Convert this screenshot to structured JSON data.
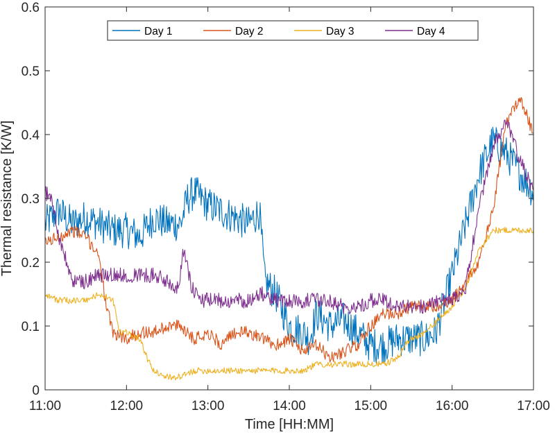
{
  "chart_data": {
    "type": "line",
    "xlabel": "Time [HH:MM]",
    "ylabel": "Thermal resistance [K/W]",
    "xlim": [
      "11:00",
      "17:00"
    ],
    "ylim": [
      0,
      0.6
    ],
    "x_ticks": [
      "11:00",
      "12:00",
      "13:00",
      "14:00",
      "15:00",
      "16:00",
      "17:00"
    ],
    "y_ticks": [
      "0",
      "0.1",
      "0.2",
      "0.3",
      "0.4",
      "0.5",
      "0.6"
    ],
    "grid": false,
    "legend_position": "top-center",
    "legend_orientation": "horizontal",
    "series": [
      {
        "name": "Day 1",
        "color": "#0072bd",
        "noise": 0.028,
        "x": [
          "11:00",
          "11:10",
          "11:20",
          "11:30",
          "11:40",
          "11:50",
          "12:00",
          "12:10",
          "12:20",
          "12:30",
          "12:40",
          "12:45",
          "12:50",
          "13:00",
          "13:10",
          "13:20",
          "13:30",
          "13:38",
          "13:42",
          "13:50",
          "14:00",
          "14:10",
          "14:15",
          "14:20",
          "14:30",
          "14:40",
          "14:50",
          "15:00",
          "15:10",
          "15:20",
          "15:30",
          "15:40",
          "15:48",
          "15:52",
          "16:00",
          "16:10",
          "16:20",
          "16:30",
          "16:40",
          "16:50",
          "17:00"
        ],
        "y": [
          0.26,
          0.28,
          0.26,
          0.27,
          0.26,
          0.25,
          0.25,
          0.24,
          0.27,
          0.26,
          0.26,
          0.3,
          0.31,
          0.29,
          0.28,
          0.27,
          0.26,
          0.28,
          0.17,
          0.15,
          0.1,
          0.09,
          0.08,
          0.12,
          0.1,
          0.11,
          0.09,
          0.07,
          0.07,
          0.08,
          0.08,
          0.08,
          0.09,
          0.12,
          0.18,
          0.26,
          0.34,
          0.39,
          0.37,
          0.34,
          0.31
        ]
      },
      {
        "name": "Day 2",
        "color": "#d95319",
        "noise": 0.01,
        "x": [
          "11:00",
          "11:10",
          "11:20",
          "11:30",
          "11:40",
          "11:45",
          "11:50",
          "12:00",
          "12:10",
          "12:20",
          "12:30",
          "12:40",
          "12:50",
          "13:00",
          "13:10",
          "13:20",
          "13:30",
          "13:40",
          "13:50",
          "14:00",
          "14:10",
          "14:20",
          "14:30",
          "14:40",
          "14:50",
          "15:00",
          "15:10",
          "15:20",
          "15:30",
          "15:40",
          "15:50",
          "16:00",
          "16:10",
          "16:20",
          "16:30",
          "16:40",
          "16:50",
          "17:00"
        ],
        "y": [
          0.23,
          0.24,
          0.25,
          0.24,
          0.21,
          0.13,
          0.09,
          0.08,
          0.09,
          0.09,
          0.1,
          0.1,
          0.08,
          0.09,
          0.07,
          0.09,
          0.09,
          0.08,
          0.07,
          0.08,
          0.06,
          0.07,
          0.05,
          0.06,
          0.07,
          0.1,
          0.12,
          0.12,
          0.13,
          0.13,
          0.13,
          0.14,
          0.17,
          0.2,
          0.28,
          0.42,
          0.46,
          0.4
        ]
      },
      {
        "name": "Day 3",
        "color": "#edb120",
        "noise": 0.005,
        "x": [
          "11:00",
          "11:10",
          "11:20",
          "11:30",
          "11:40",
          "11:50",
          "11:55",
          "12:00",
          "12:10",
          "12:15",
          "12:20",
          "12:30",
          "12:40",
          "12:50",
          "13:00",
          "13:10",
          "13:20",
          "13:30",
          "13:40",
          "13:50",
          "14:00",
          "14:10",
          "14:20",
          "14:30",
          "14:40",
          "14:50",
          "15:00",
          "15:10",
          "15:20",
          "15:25",
          "15:30",
          "15:40",
          "15:50",
          "16:00",
          "16:10",
          "16:20",
          "16:30",
          "16:40",
          "16:50",
          "17:00"
        ],
        "y": [
          0.15,
          0.14,
          0.14,
          0.14,
          0.15,
          0.14,
          0.09,
          0.09,
          0.08,
          0.05,
          0.03,
          0.02,
          0.02,
          0.03,
          0.03,
          0.03,
          0.03,
          0.03,
          0.03,
          0.03,
          0.03,
          0.03,
          0.04,
          0.04,
          0.04,
          0.04,
          0.04,
          0.04,
          0.05,
          0.07,
          0.08,
          0.09,
          0.11,
          0.13,
          0.16,
          0.22,
          0.25,
          0.25,
          0.25,
          0.25
        ]
      },
      {
        "name": "Day 4",
        "color": "#7e2f8e",
        "noise": 0.012,
        "x": [
          "11:00",
          "11:05",
          "11:10",
          "11:20",
          "11:30",
          "11:40",
          "11:50",
          "12:00",
          "12:10",
          "12:20",
          "12:30",
          "12:38",
          "12:42",
          "12:48",
          "12:55",
          "13:00",
          "13:10",
          "13:20",
          "13:30",
          "13:40",
          "13:50",
          "14:00",
          "14:10",
          "14:20",
          "14:30",
          "14:40",
          "14:50",
          "15:00",
          "15:10",
          "15:20",
          "15:30",
          "15:40",
          "15:50",
          "16:00",
          "16:10",
          "16:20",
          "16:30",
          "16:40",
          "16:50",
          "17:00"
        ],
        "y": [
          0.31,
          0.3,
          0.24,
          0.17,
          0.17,
          0.18,
          0.18,
          0.18,
          0.18,
          0.18,
          0.17,
          0.16,
          0.22,
          0.16,
          0.14,
          0.14,
          0.14,
          0.14,
          0.14,
          0.15,
          0.14,
          0.14,
          0.14,
          0.14,
          0.14,
          0.13,
          0.13,
          0.14,
          0.14,
          0.13,
          0.13,
          0.13,
          0.14,
          0.14,
          0.16,
          0.29,
          0.38,
          0.42,
          0.36,
          0.31
        ]
      }
    ]
  }
}
